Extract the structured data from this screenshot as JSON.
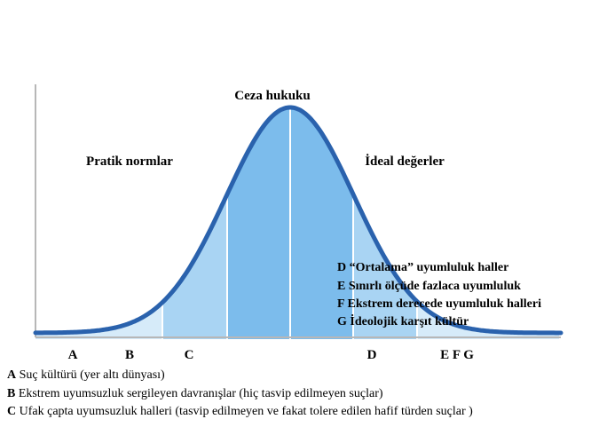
{
  "title": "Ceza hukuku",
  "left_region_label": "Pratik normlar",
  "right_region_label": "İdeal değerler",
  "axis_letters": [
    "A",
    "B",
    "C",
    "D",
    "E F G"
  ],
  "right_legend": [
    {
      "key": "D",
      "text": "“Ortalama” uyumluluk haller"
    },
    {
      "key": "E",
      "text": "Sınırlı ölçüde fazlaca uyumluluk"
    },
    {
      "key": "F",
      "text": "Ekstrem derecede uyumluluk halleri"
    },
    {
      "key": "G",
      "text": "İdeolojik karşıt kültür"
    }
  ],
  "bottom_legend": [
    {
      "key": "A",
      "text": "Suç kültürü (yer altı dünyası)"
    },
    {
      "key": "B",
      "text": "Ekstrem uyumsuzluk sergileyen davranışlar (hiç tasvip edilmeyen suçlar)"
    },
    {
      "key": "C",
      "text": "Ufak çapta uyumsuzluk halleri (tasvip edilmeyen ve fakat tolere edilen hafif türden suçlar      )"
    }
  ],
  "colors": {
    "curve": "#2a62ad",
    "axis": "#b7b7b7",
    "fill_light": "#d6ebf9",
    "fill_mid": "#a9d4f3",
    "fill_dark": "#7cbcec",
    "divider": "#ffffff"
  }
}
